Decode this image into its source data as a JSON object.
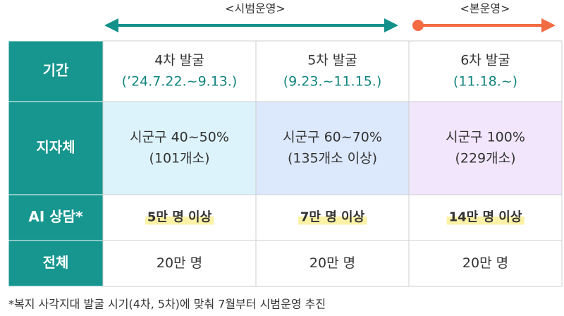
{
  "header": {
    "trial_label": "<시범운영>",
    "main_label": "<본운영>"
  },
  "table": {
    "rows": [
      {
        "header": "기간",
        "cells": [
          [
            "4차 발굴",
            "(’24.7.22.~9.13.)"
          ],
          [
            "5차 발굴",
            "(9.23.~11.15.)"
          ],
          [
            "6차 발굴",
            "(11.18.~)"
          ]
        ]
      },
      {
        "header": "지자체",
        "cells": [
          [
            "시군구 40~50%",
            "(101개소)"
          ],
          [
            "시군구 60~70%",
            "(135개소 이상)"
          ],
          [
            "시군구 100%",
            "(229개소)"
          ]
        ]
      },
      {
        "header": "AI 상담*",
        "cells": [
          [
            "5만 명 이상"
          ],
          [
            "7만 명 이상"
          ],
          [
            "14만 명 이상"
          ]
        ]
      },
      {
        "header": "전체",
        "cells": [
          [
            "20만 명"
          ],
          [
            "20만 명"
          ],
          [
            "20만 명"
          ]
        ]
      }
    ]
  },
  "footnote": "*복지 사각지대 발굴 시기(4차, 5차)에 맞춰 7월부터 시범운영 추진"
}
